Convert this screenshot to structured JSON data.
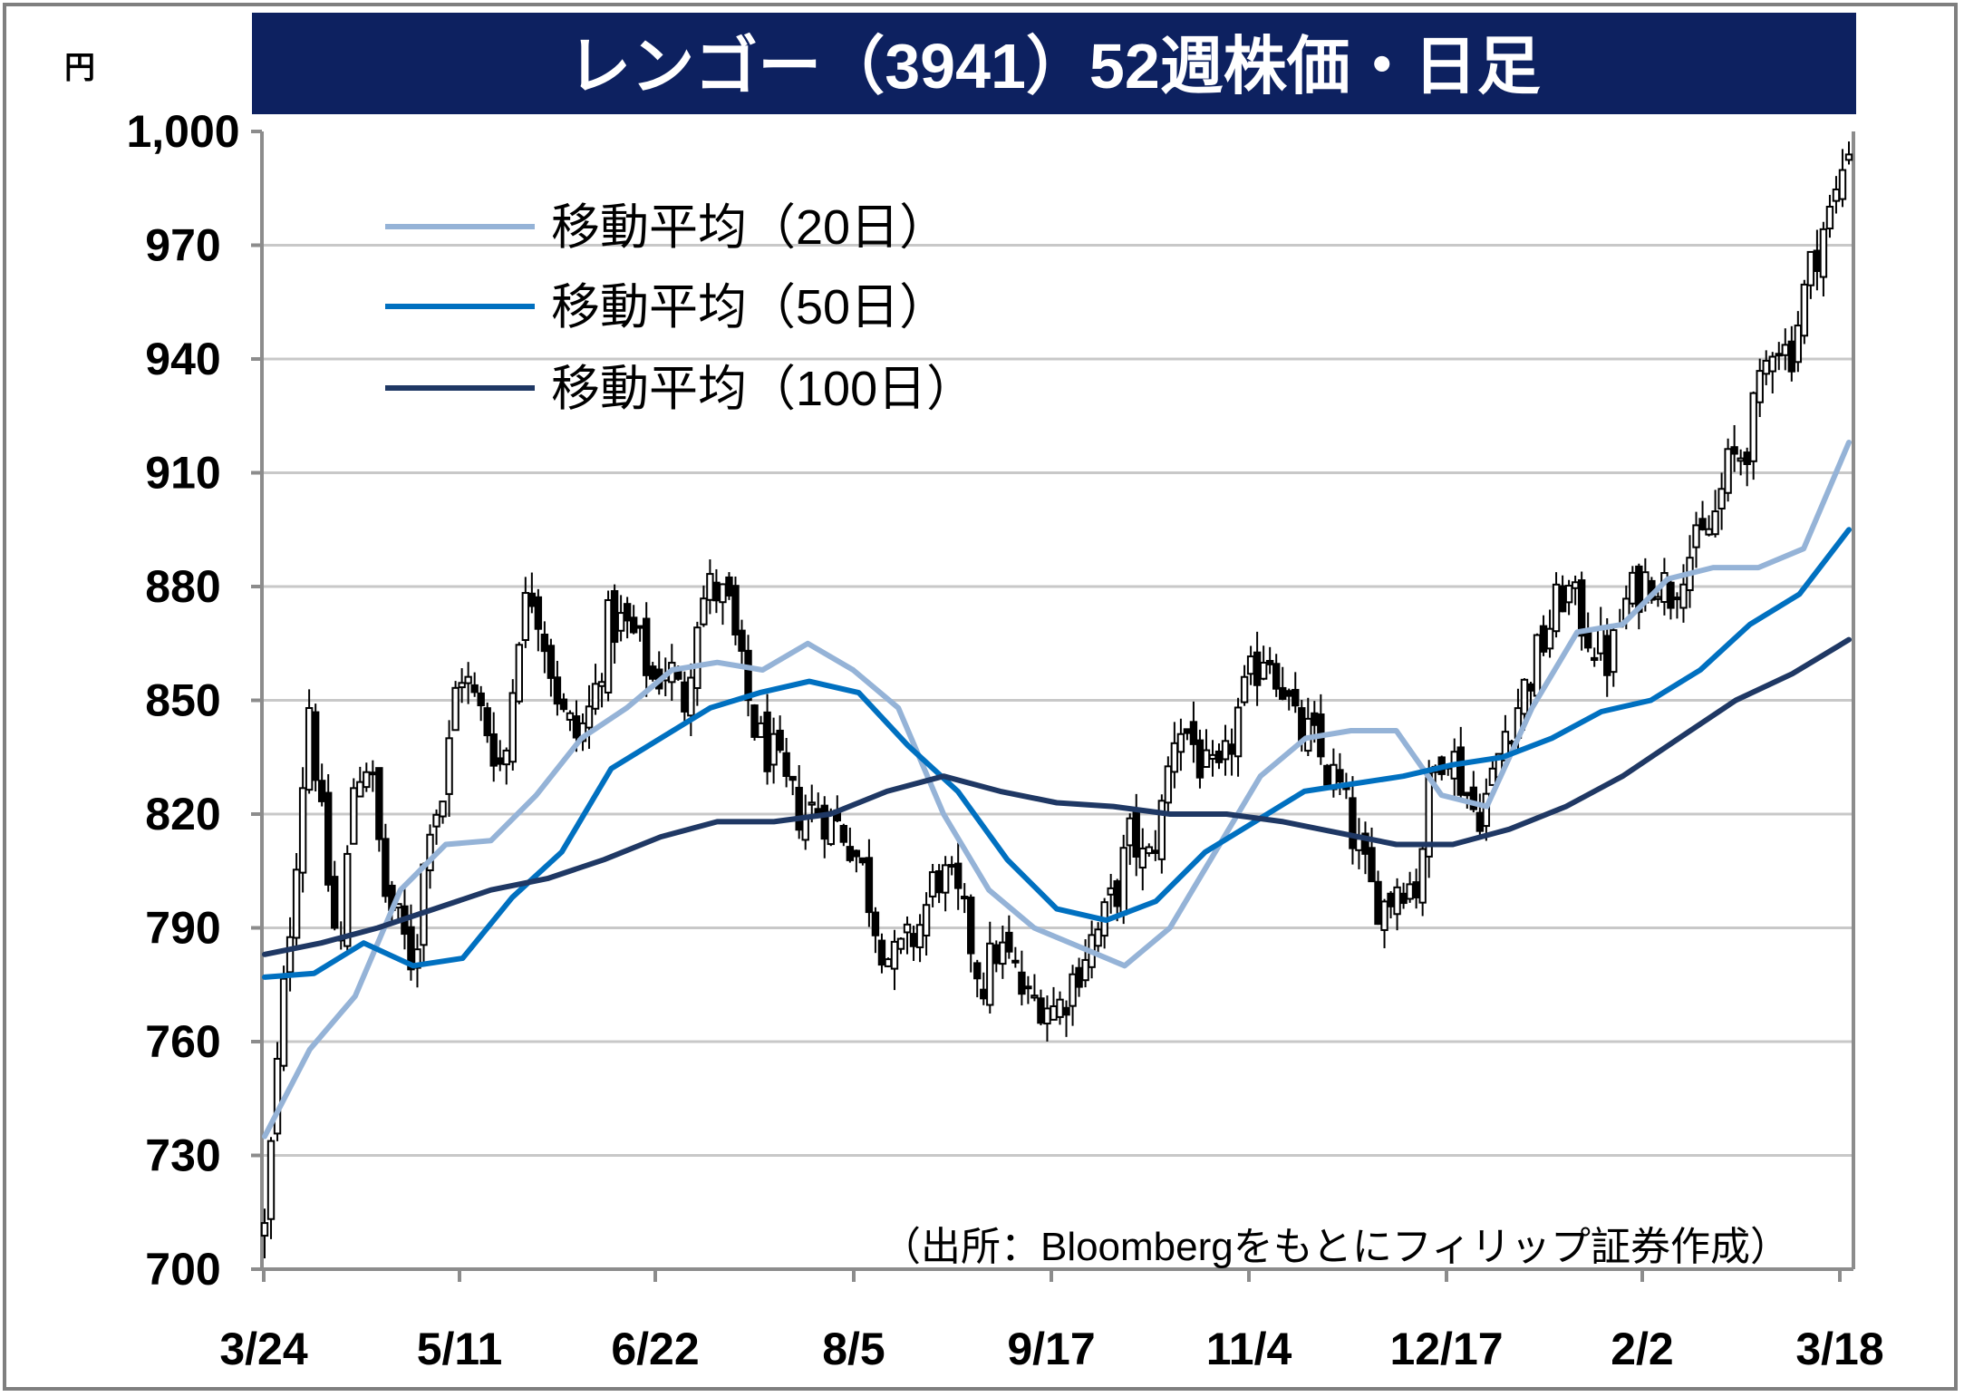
{
  "chart_data": {
    "type": "candlestick",
    "title": "レンゴー（3941）52週株価・日足",
    "unit": "円",
    "source": "（出所：Bloombergをもとにフィリップ証券作成）",
    "ylim": [
      700,
      1000
    ],
    "y_ticks": [
      "1,000",
      "970",
      "940",
      "910",
      "880",
      "850",
      "820",
      "790",
      "760",
      "730",
      "700"
    ],
    "x_ticks": [
      "3/24",
      "5/11",
      "6/22",
      "8/5",
      "9/17",
      "11/4",
      "12/17",
      "2/2",
      "3/18"
    ],
    "grid": "horizontal",
    "legend_position": "top-left",
    "series": [
      {
        "name": "移動平均（20日）",
        "color": "#95b3d7",
        "values": [
          735,
          758,
          772,
          800,
          812,
          813,
          825,
          840,
          848,
          858,
          860,
          858,
          865,
          858,
          848,
          820,
          800,
          790,
          785,
          780,
          790,
          810,
          830,
          840,
          842,
          842,
          825,
          822,
          848,
          868,
          870,
          882,
          885,
          885,
          890,
          918
        ]
      },
      {
        "name": "移動平均（50日）",
        "color": "#0070c0",
        "values": [
          777,
          778,
          786,
          780,
          782,
          798,
          810,
          832,
          840,
          848,
          852,
          855,
          852,
          838,
          826,
          808,
          795,
          792,
          797,
          810,
          818,
          826,
          828,
          830,
          833,
          835,
          840,
          847,
          850,
          858,
          870,
          878,
          895
        ]
      },
      {
        "name": "移動平均（100日）",
        "color": "#1f3864",
        "values": [
          783,
          786,
          790,
          795,
          800,
          803,
          808,
          814,
          818,
          818,
          820,
          826,
          830,
          826,
          823,
          822,
          820,
          820,
          818,
          815,
          812,
          812,
          816,
          822,
          830,
          840,
          850,
          857,
          866
        ]
      }
    ],
    "candles": {
      "count": 250,
      "close_path": [
        710,
        760,
        805,
        850,
        810,
        780,
        830,
        835,
        800,
        790,
        780,
        820,
        825,
        860,
        850,
        842,
        830,
        870,
        880,
        862,
        845,
        840,
        850,
        870,
        870,
        865,
        855,
        860,
        848,
        875,
        880,
        875,
        855,
        840,
        835,
        825,
        820,
        822,
        818,
        815,
        805,
        790,
        780,
        785,
        792,
        805,
        800,
        790,
        775,
        785,
        780,
        770,
        772,
        768,
        776,
        785,
        790,
        800,
        815,
        805,
        820,
        845,
        840,
        830,
        828,
        845,
        855,
        865,
        856,
        842,
        840,
        832,
        826,
        812,
        800,
        796,
        804,
        800,
        828,
        840,
        830,
        820,
        826,
        842,
        850,
        860,
        870,
        880,
        872,
        865,
        860,
        875,
        880,
        884,
        878,
        888,
        890,
        898,
        912,
        916,
        930,
        948,
        940,
        957,
        972,
        980,
        998
      ]
    }
  }
}
